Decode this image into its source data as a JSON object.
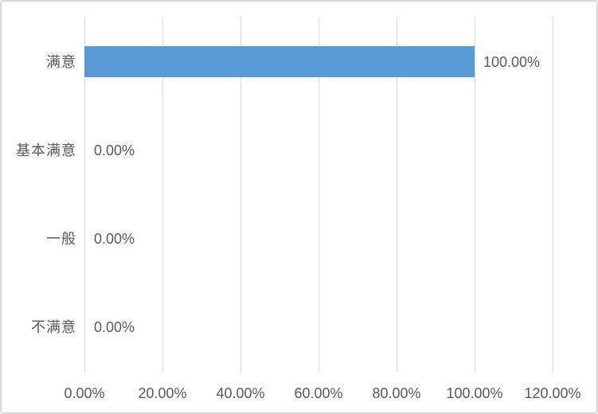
{
  "colors": {
    "bar": "#5B9BD5",
    "gridline": "#D9D9D9",
    "text": "#595959",
    "frame_border": "#D9D9D9",
    "background": "#FFFFFF"
  },
  "chart_data": {
    "type": "bar",
    "orientation": "horizontal",
    "categories": [
      "满意",
      "基本满意",
      "一般",
      "不满意"
    ],
    "values": [
      100.0,
      0.0,
      0.0,
      0.0
    ],
    "data_labels": [
      "100.00%",
      "0.00%",
      "0.00%",
      "0.00%"
    ],
    "x_tick_labels": [
      "0.00%",
      "20.00%",
      "40.00%",
      "60.00%",
      "80.00%",
      "100.00%",
      "120.00%"
    ],
    "xlim": [
      0,
      120
    ],
    "x_tick_step": 20,
    "grid": true,
    "gridlines": "vertical",
    "legend": "none"
  }
}
